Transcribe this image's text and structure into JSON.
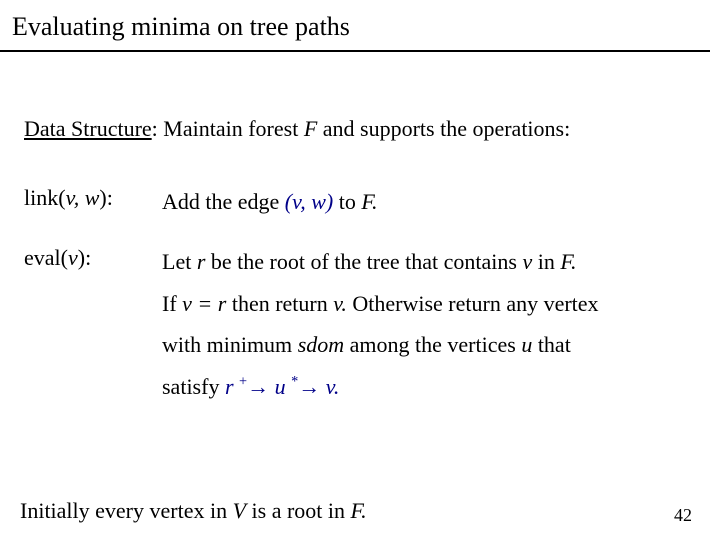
{
  "title": "Evaluating minima on tree paths",
  "intro": {
    "prefix": "Data Structure",
    "rest": ": Maintain forest  ",
    "forest": "F",
    "after": "  and supports the operations:"
  },
  "ops": {
    "link": {
      "name": "link",
      "args": "v, w",
      "desc_pre": "Add the edge ",
      "edge": "(v, w)",
      "desc_mid": "  to  ",
      "target": "F."
    },
    "eval": {
      "name": "eval",
      "args": "v",
      "l1_a": "Let  ",
      "r": "r",
      "l1_b": "  be the root of the tree that contains  ",
      "v": "v",
      "l1_c": "  in  ",
      "F": "F.",
      "l2_a": "If  ",
      "v_eq_r": "v = r",
      "l2_b": "  then return  ",
      "v2": "v.",
      "l2_c": "  Otherwise return any vertex",
      "l3_a": "with minimum  ",
      "sdom": "sdom",
      "l3_b": "  among the vertices  ",
      "u": "u",
      "l3_c": "  that",
      "l4_a": "satisfy  ",
      "rel_r": "r",
      "plus": "+",
      "arrow1": "→",
      "rel_u": " u ",
      "star": "*",
      "arrow2": "→",
      "rel_v": "  v."
    }
  },
  "final": {
    "a": "Initially every vertex in  ",
    "V": "V",
    "b": "  is a root in  ",
    "F": "F."
  },
  "page": "42"
}
